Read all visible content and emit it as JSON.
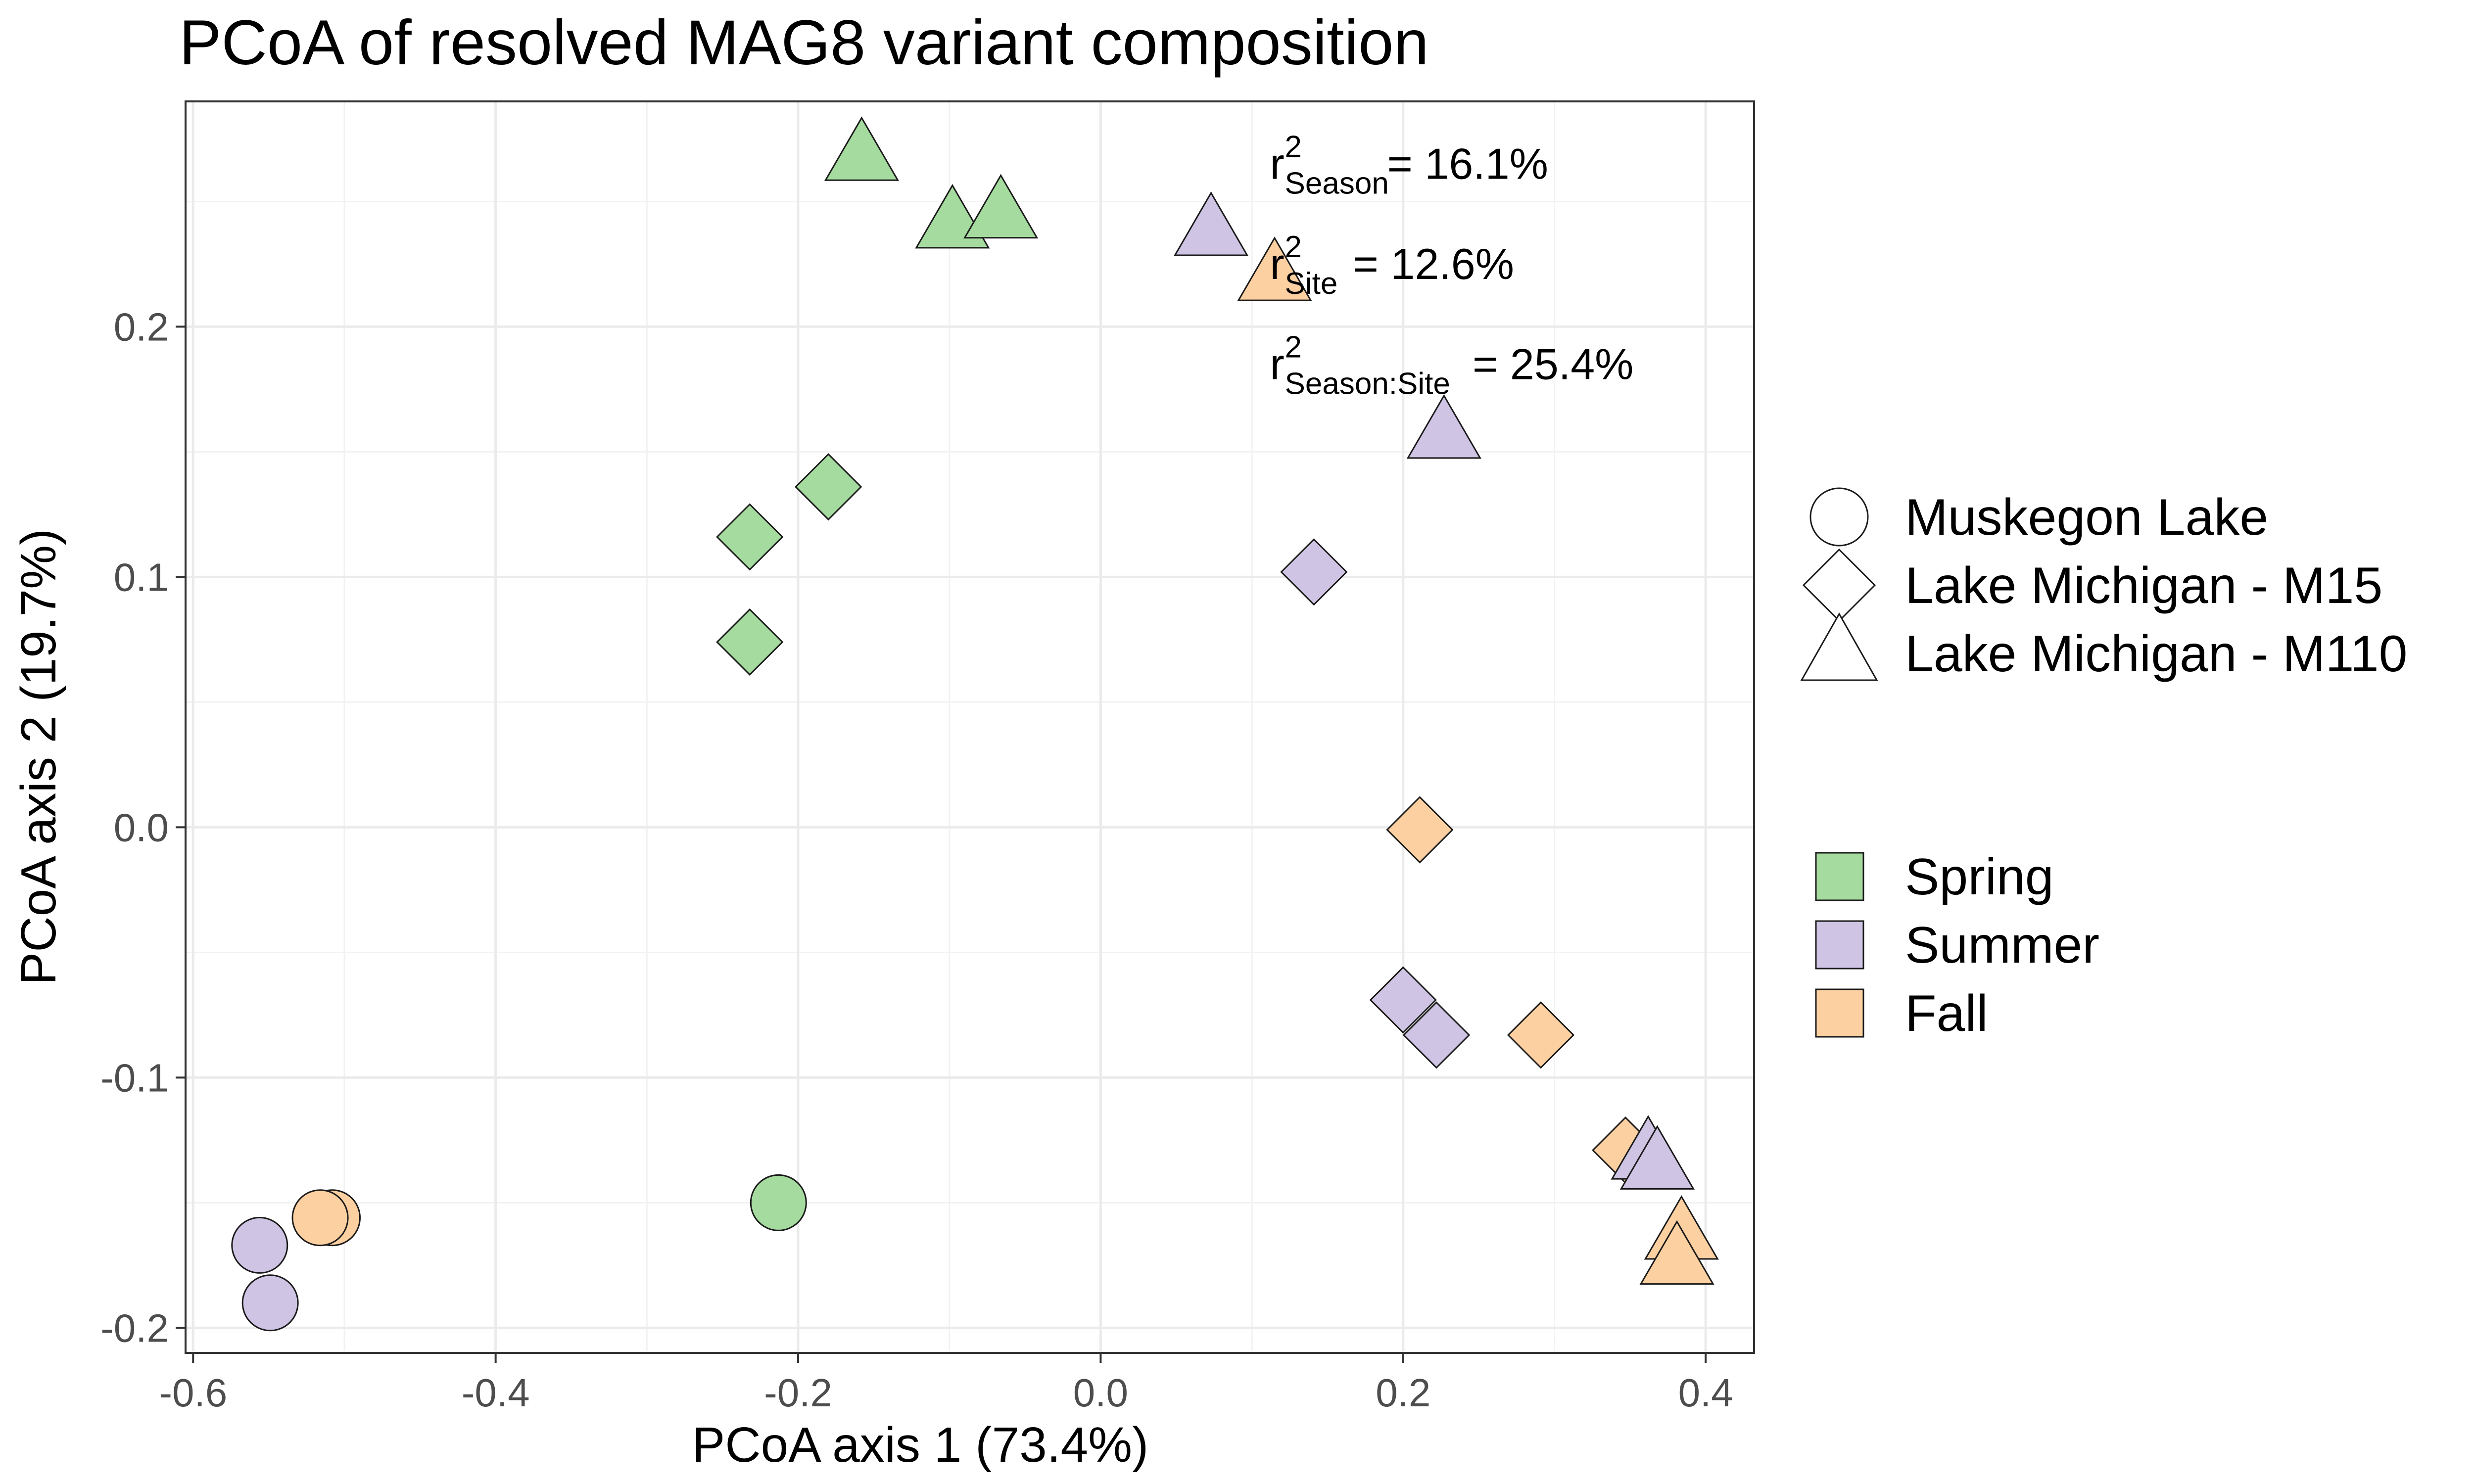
{
  "chart_data": {
    "type": "scatter",
    "title": "PCoA of resolved MAG8 variant composition",
    "xlabel": "PCoA axis 1 (73.4%)",
    "ylabel": "PCoA axis 2 (19.7%)",
    "xlim": [
      -0.605,
      0.432
    ],
    "ylim": [
      -0.21,
      0.29
    ],
    "x_ticks": [
      -0.6,
      -0.4,
      -0.2,
      0.0,
      0.2,
      0.4
    ],
    "x_tick_labels": [
      "-0.6",
      "-0.4",
      "-0.2",
      "0.0",
      "0.2",
      "0.4"
    ],
    "y_ticks": [
      -0.2,
      -0.1,
      0.0,
      0.1,
      0.2
    ],
    "y_tick_labels": [
      "-0.2",
      "-0.1",
      "0.0",
      "0.1",
      "0.2"
    ],
    "grid": true,
    "legend_position": "right",
    "shape_legend": [
      {
        "label": "Muskegon Lake",
        "shape": "circle"
      },
      {
        "label": "Lake Michigan - M15",
        "shape": "diamond"
      },
      {
        "label": "Lake Michigan - M110",
        "shape": "triangle"
      }
    ],
    "color_legend": [
      {
        "label": "Spring",
        "color": "#a6dba0"
      },
      {
        "label": "Summer",
        "color": "#cfc4e3"
      },
      {
        "label": "Fall",
        "color": "#fdd0a2"
      }
    ],
    "annotations": [
      {
        "base": "r",
        "sup": "2",
        "sub": "Season",
        "value": " = 16.1%",
        "x": 0.125,
        "y": 0.263
      },
      {
        "base": "r",
        "sup": "2",
        "sub": "Site",
        "value": " = 12.6%",
        "x": 0.125,
        "y": 0.223
      },
      {
        "base": "r",
        "sup": "2",
        "sub": "Season:Site",
        "value": " = 25.4%",
        "x": 0.125,
        "y": 0.183
      }
    ],
    "points": [
      {
        "x": -0.158,
        "y": 0.268,
        "site": "Lake Michigan - M110",
        "season": "Spring"
      },
      {
        "x": -0.098,
        "y": 0.241,
        "site": "Lake Michigan - M110",
        "season": "Spring"
      },
      {
        "x": -0.066,
        "y": 0.245,
        "site": "Lake Michigan - M110",
        "season": "Spring"
      },
      {
        "x": 0.073,
        "y": 0.238,
        "site": "Lake Michigan - M110",
        "season": "Summer"
      },
      {
        "x": 0.115,
        "y": 0.22,
        "site": "Lake Michigan - M110",
        "season": "Fall"
      },
      {
        "x": 0.227,
        "y": 0.157,
        "site": "Lake Michigan - M110",
        "season": "Summer"
      },
      {
        "x": -0.18,
        "y": 0.136,
        "site": "Lake Michigan - M15",
        "season": "Spring"
      },
      {
        "x": -0.232,
        "y": 0.116,
        "site": "Lake Michigan - M15",
        "season": "Spring"
      },
      {
        "x": -0.232,
        "y": 0.074,
        "site": "Lake Michigan - M15",
        "season": "Spring"
      },
      {
        "x": 0.141,
        "y": 0.102,
        "site": "Lake Michigan - M15",
        "season": "Summer"
      },
      {
        "x": 0.211,
        "y": -0.001,
        "site": "Lake Michigan - M15",
        "season": "Fall"
      },
      {
        "x": 0.2,
        "y": -0.069,
        "site": "Lake Michigan - M15",
        "season": "Summer"
      },
      {
        "x": 0.222,
        "y": -0.083,
        "site": "Lake Michigan - M15",
        "season": "Summer"
      },
      {
        "x": 0.291,
        "y": -0.083,
        "site": "Lake Michigan - M15",
        "season": "Fall"
      },
      {
        "x": 0.347,
        "y": -0.129,
        "site": "Lake Michigan - M15",
        "season": "Fall"
      },
      {
        "x": 0.362,
        "y": -0.131,
        "site": "Lake Michigan - M110",
        "season": "Summer"
      },
      {
        "x": 0.368,
        "y": -0.135,
        "site": "Lake Michigan - M110",
        "season": "Summer"
      },
      {
        "x": 0.384,
        "y": -0.163,
        "site": "Lake Michigan - M110",
        "season": "Fall"
      },
      {
        "x": 0.381,
        "y": -0.173,
        "site": "Lake Michigan - M110",
        "season": "Fall"
      },
      {
        "x": -0.213,
        "y": -0.15,
        "site": "Muskegon Lake",
        "season": "Spring"
      },
      {
        "x": -0.508,
        "y": -0.156,
        "site": "Muskegon Lake",
        "season": "Fall"
      },
      {
        "x": -0.516,
        "y": -0.156,
        "site": "Muskegon Lake",
        "season": "Fall"
      },
      {
        "x": -0.556,
        "y": -0.167,
        "site": "Muskegon Lake",
        "season": "Summer"
      },
      {
        "x": -0.549,
        "y": -0.19,
        "site": "Muskegon Lake",
        "season": "Summer"
      }
    ]
  }
}
